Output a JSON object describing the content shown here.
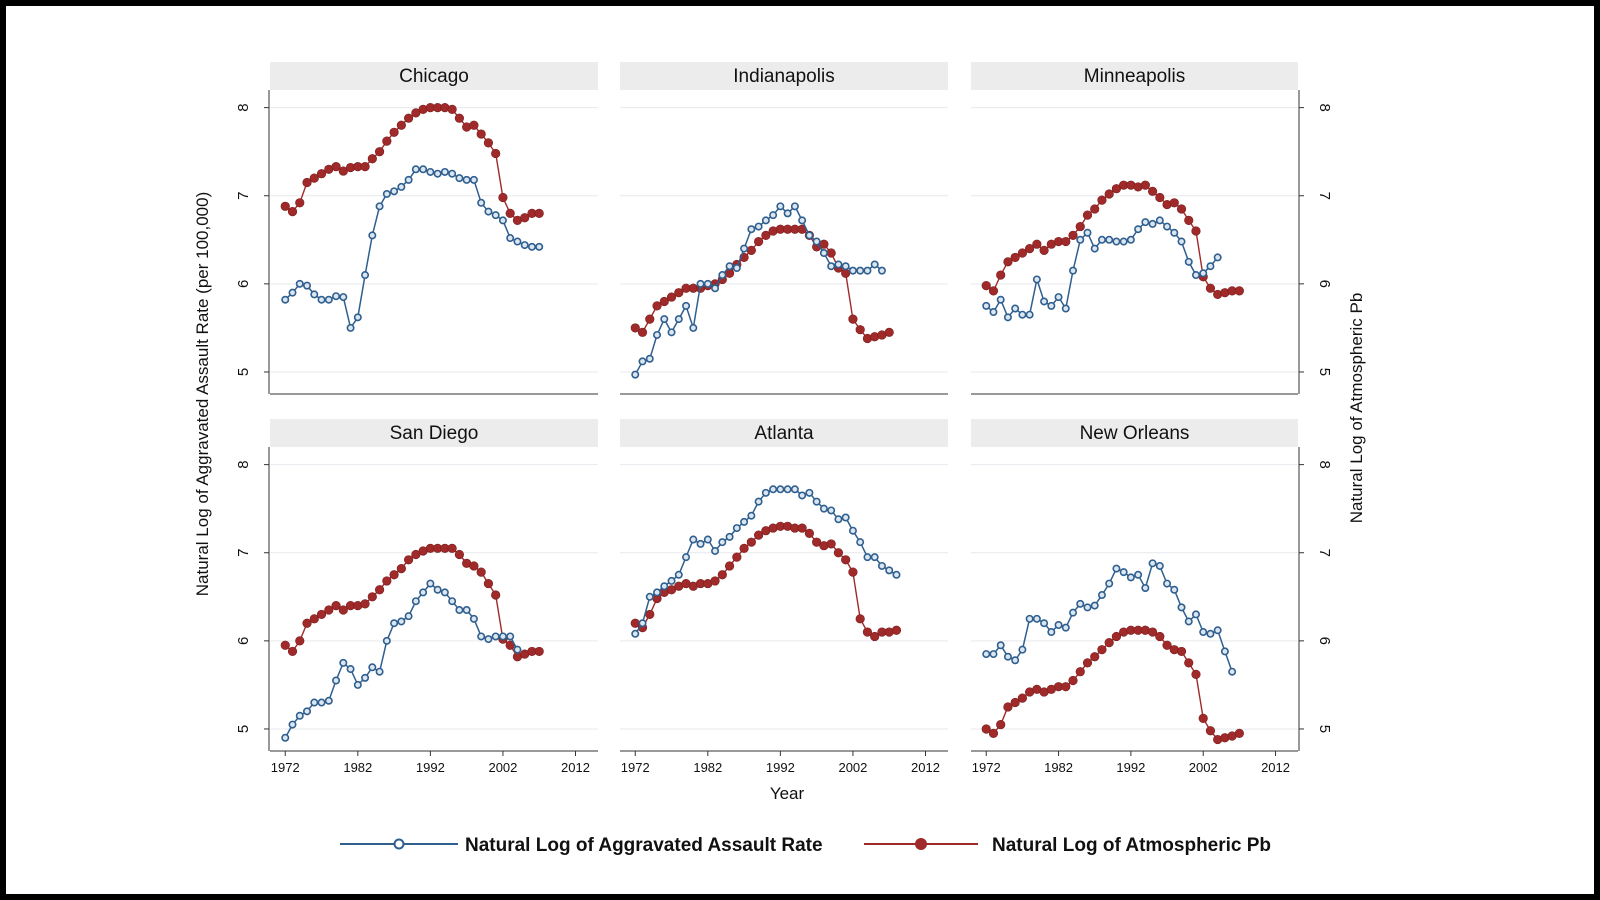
{
  "chart_data": {
    "type": "line",
    "xlabel": "Year",
    "ylabel_left": "Natural Log of Aggravated Assault Rate (per 100,000)",
    "ylabel_right": "Natural Log of Atmospheric Pb",
    "xticks": [
      1972,
      1982,
      1992,
      2002,
      2012
    ],
    "xlim": [
      1971,
      2014
    ],
    "yticks": [
      5,
      6,
      7,
      8
    ],
    "ylim": [
      4.75,
      8.2
    ],
    "colors": {
      "assault": "#2f5f8f",
      "lead": "#a02a2a",
      "strip": "#ececec"
    },
    "legend": [
      {
        "label": "Natural Log of Aggravated Assault Rate",
        "series": "assault",
        "marker": "hollow-circle"
      },
      {
        "label": "Natural Log of Atmospheric Pb",
        "series": "lead",
        "marker": "filled-circle"
      }
    ],
    "legend_position": "bottom-center",
    "panels": [
      {
        "title": "Chicago",
        "assault": {
          "start": 1972,
          "values": [
            5.82,
            5.9,
            6.0,
            5.98,
            5.88,
            5.82,
            5.82,
            5.86,
            5.85,
            5.5,
            5.62,
            6.1,
            6.55,
            6.88,
            7.02,
            7.05,
            7.1,
            7.18,
            7.3,
            7.3,
            7.27,
            7.25,
            7.27,
            7.25,
            7.2,
            7.18,
            7.18,
            6.92,
            6.82,
            6.78,
            6.72,
            6.52,
            6.48,
            6.44,
            6.42,
            6.42
          ]
        },
        "lead": {
          "start": 1972,
          "values": [
            6.88,
            6.82,
            6.92,
            7.15,
            7.2,
            7.25,
            7.3,
            7.33,
            7.28,
            7.32,
            7.33,
            7.33,
            7.42,
            7.5,
            7.62,
            7.72,
            7.8,
            7.88,
            7.94,
            7.98,
            8.0,
            8.0,
            8.0,
            7.98,
            7.88,
            7.78,
            7.8,
            7.7,
            7.6,
            7.48,
            6.98,
            6.8,
            6.72,
            6.75,
            6.8,
            6.8
          ]
        }
      },
      {
        "title": "Indianapolis",
        "assault": {
          "start": 1972,
          "values": [
            4.97,
            5.12,
            5.15,
            5.42,
            5.6,
            5.45,
            5.6,
            5.75,
            5.5,
            6.0,
            6.0,
            5.95,
            6.1,
            6.2,
            6.18,
            6.4,
            6.62,
            6.65,
            6.72,
            6.78,
            6.88,
            6.8,
            6.88,
            6.72,
            6.55,
            6.48,
            6.35,
            6.2,
            6.22,
            6.2,
            6.15,
            6.15,
            6.15,
            6.22,
            6.15
          ]
        },
        "lead": {
          "start": 1972,
          "values": [
            5.5,
            5.45,
            5.6,
            5.75,
            5.8,
            5.85,
            5.9,
            5.95,
            5.95,
            5.95,
            5.98,
            6.0,
            6.05,
            6.12,
            6.22,
            6.3,
            6.38,
            6.48,
            6.55,
            6.6,
            6.62,
            6.62,
            6.62,
            6.62,
            6.55,
            6.42,
            6.45,
            6.35,
            6.18,
            6.12,
            5.6,
            5.48,
            5.38,
            5.4,
            5.42,
            5.45
          ]
        }
      },
      {
        "title": "Minneapolis",
        "assault": {
          "start": 1972,
          "values": [
            5.75,
            5.68,
            5.82,
            5.62,
            5.72,
            5.65,
            5.65,
            6.05,
            5.8,
            5.75,
            5.85,
            5.72,
            6.15,
            6.5,
            6.58,
            6.4,
            6.5,
            6.5,
            6.48,
            6.48,
            6.5,
            6.62,
            6.7,
            6.68,
            6.72,
            6.65,
            6.58,
            6.48,
            6.25,
            6.1,
            6.12,
            6.2,
            6.3
          ]
        },
        "lead": {
          "start": 1972,
          "values": [
            5.98,
            5.92,
            6.1,
            6.25,
            6.3,
            6.35,
            6.4,
            6.45,
            6.38,
            6.45,
            6.48,
            6.48,
            6.55,
            6.65,
            6.78,
            6.85,
            6.95,
            7.02,
            7.08,
            7.12,
            7.12,
            7.1,
            7.12,
            7.05,
            6.98,
            6.9,
            6.92,
            6.85,
            6.72,
            6.6,
            6.08,
            5.95,
            5.88,
            5.9,
            5.92,
            5.92
          ]
        }
      },
      {
        "title": "San Diego",
        "assault": {
          "start": 1972,
          "values": [
            4.9,
            5.05,
            5.15,
            5.2,
            5.3,
            5.3,
            5.32,
            5.55,
            5.75,
            5.68,
            5.5,
            5.58,
            5.7,
            5.65,
            6.0,
            6.2,
            6.22,
            6.28,
            6.45,
            6.55,
            6.65,
            6.58,
            6.55,
            6.45,
            6.35,
            6.35,
            6.25,
            6.05,
            6.02,
            6.05,
            6.05,
            6.05,
            5.9
          ]
        },
        "lead": {
          "start": 1972,
          "values": [
            5.95,
            5.88,
            6.0,
            6.2,
            6.25,
            6.3,
            6.35,
            6.4,
            6.35,
            6.4,
            6.4,
            6.42,
            6.5,
            6.58,
            6.68,
            6.75,
            6.82,
            6.92,
            6.98,
            7.02,
            7.05,
            7.05,
            7.05,
            7.05,
            6.98,
            6.88,
            6.85,
            6.78,
            6.65,
            6.52,
            6.02,
            5.95,
            5.82,
            5.85,
            5.88,
            5.88
          ]
        }
      },
      {
        "title": "Atlanta",
        "assault": {
          "start": 1972,
          "values": [
            6.08,
            6.2,
            6.5,
            6.55,
            6.62,
            6.68,
            6.75,
            6.95,
            7.15,
            7.1,
            7.15,
            7.02,
            7.12,
            7.18,
            7.28,
            7.35,
            7.42,
            7.58,
            7.68,
            7.72,
            7.72,
            7.72,
            7.72,
            7.65,
            7.68,
            7.58,
            7.5,
            7.48,
            7.38,
            7.4,
            7.25,
            7.12,
            6.95,
            6.95,
            6.85,
            6.8,
            6.75
          ]
        },
        "lead": {
          "start": 1972,
          "values": [
            6.2,
            6.15,
            6.3,
            6.48,
            6.55,
            6.58,
            6.62,
            6.65,
            6.62,
            6.65,
            6.65,
            6.68,
            6.75,
            6.85,
            6.95,
            7.05,
            7.12,
            7.2,
            7.25,
            7.28,
            7.3,
            7.3,
            7.28,
            7.28,
            7.22,
            7.12,
            7.08,
            7.1,
            7.0,
            6.92,
            6.78,
            6.25,
            6.1,
            6.05,
            6.1,
            6.1,
            6.12
          ]
        }
      },
      {
        "title": "New Orleans",
        "assault": {
          "start": 1972,
          "values": [
            5.85,
            5.85,
            5.95,
            5.82,
            5.78,
            5.9,
            6.25,
            6.25,
            6.2,
            6.1,
            6.18,
            6.15,
            6.32,
            6.42,
            6.38,
            6.4,
            6.52,
            6.65,
            6.82,
            6.78,
            6.72,
            6.75,
            6.6,
            6.88,
            6.85,
            6.65,
            6.58,
            6.38,
            6.22,
            6.3,
            6.1,
            6.08,
            6.12,
            5.88,
            5.65
          ]
        },
        "lead": {
          "start": 1972,
          "values": [
            5.0,
            4.95,
            5.05,
            5.25,
            5.3,
            5.35,
            5.42,
            5.45,
            5.42,
            5.45,
            5.48,
            5.48,
            5.55,
            5.65,
            5.75,
            5.82,
            5.9,
            5.98,
            6.05,
            6.1,
            6.12,
            6.12,
            6.12,
            6.1,
            6.05,
            5.95,
            5.9,
            5.88,
            5.75,
            5.62,
            5.12,
            4.98,
            4.88,
            4.9,
            4.92,
            4.95
          ]
        }
      }
    ]
  }
}
